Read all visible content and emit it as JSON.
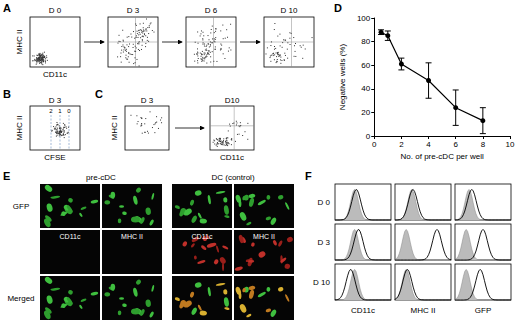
{
  "chart_data": {
    "type": "line",
    "x_label": "No. of pre-cDC per well",
    "y_label": "Negative wells (%)",
    "x": [
      0.5,
      1,
      2,
      4,
      6,
      8
    ],
    "values": [
      88,
      85,
      61,
      47,
      24,
      13
    ],
    "errors": [
      2,
      4,
      5,
      15,
      15,
      11
    ],
    "color": "#000000",
    "marker": "circle",
    "xlim": [
      0,
      10
    ],
    "xticks": [
      0,
      2,
      4,
      6,
      8,
      10
    ],
    "ylim": [
      0,
      100
    ],
    "yticks": [
      0,
      20,
      40,
      60,
      80,
      100
    ],
    "grid": false
  },
  "panels": {
    "A": {
      "label": "A",
      "y_axis": "MHC II",
      "x_axis": "CD11c",
      "plots": [
        "D 0",
        "D 3",
        "D 6",
        "D 10"
      ]
    },
    "B": {
      "label": "B",
      "title": "D 3",
      "y_axis": "MHC II",
      "x_axis": "CFSE",
      "peaks": [
        "2",
        "1",
        "0"
      ]
    },
    "C": {
      "label": "C",
      "y_axis": "MHC II",
      "x_axis": "CD11c",
      "plots": [
        "D 3",
        "D10"
      ]
    },
    "D": {
      "label": "D"
    },
    "E": {
      "label": "E",
      "columns": [
        "pre-cDC",
        "DC (control)"
      ],
      "rows": [
        "GFP",
        "Merged"
      ],
      "stain_labels": [
        "CD11c",
        "MHC II"
      ]
    },
    "F": {
      "label": "F",
      "rows": [
        "D 0",
        "D 3",
        "D 10"
      ],
      "columns": [
        "CD11c",
        "MHC II",
        "GFP"
      ]
    }
  }
}
